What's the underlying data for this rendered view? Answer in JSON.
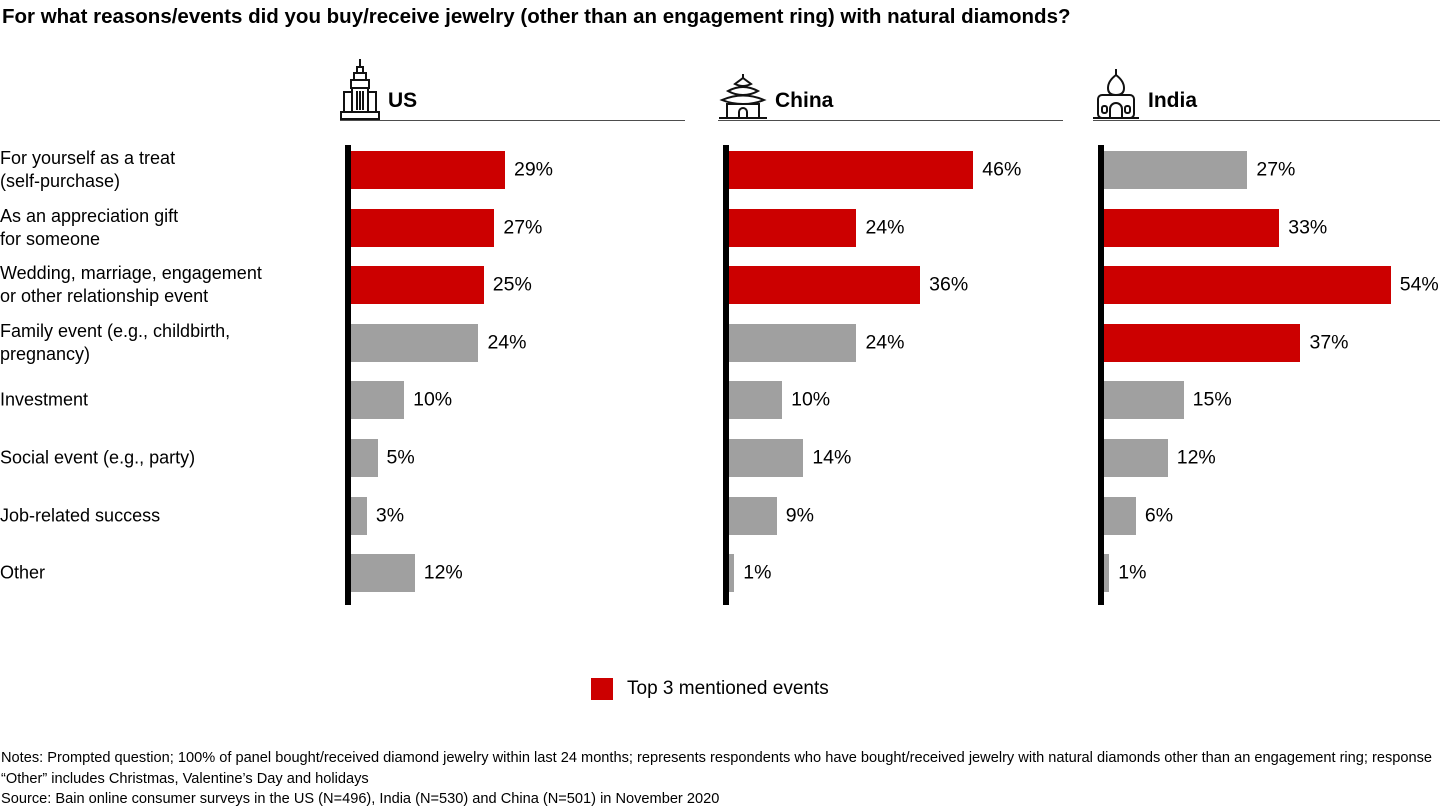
{
  "chart_data": {
    "type": "bar",
    "orientation": "horizontal",
    "title": "For what reasons/events did you buy/receive jewelry (other than an engagement ring) with natural diamonds?",
    "categories": [
      "For yourself as a treat\n(self-purchase)",
      "As an appreciation gift\nfor someone",
      "Wedding, marriage, engagement\nor other relationship event",
      "Family event (e.g., childbirth,\npregnancy)",
      "Investment",
      "Social event (e.g., party)",
      "Job-related success",
      "Other"
    ],
    "series": [
      {
        "name": "US",
        "icon": "empire-state-building-icon",
        "values": [
          29,
          27,
          25,
          24,
          10,
          5,
          3,
          12
        ],
        "highlighted": [
          true,
          true,
          true,
          false,
          false,
          false,
          false,
          false
        ]
      },
      {
        "name": "China",
        "icon": "china-temple-icon",
        "values": [
          46,
          24,
          36,
          24,
          10,
          14,
          9,
          1
        ],
        "highlighted": [
          true,
          true,
          true,
          false,
          false,
          false,
          false,
          false
        ]
      },
      {
        "name": "India",
        "icon": "taj-mahal-icon",
        "values": [
          27,
          33,
          54,
          37,
          15,
          12,
          6,
          1
        ],
        "highlighted": [
          false,
          true,
          true,
          true,
          false,
          false,
          false,
          false
        ]
      }
    ],
    "value_suffix": "%",
    "xlim": [
      0,
      64
    ],
    "grid": false,
    "legend": {
      "label": "Top 3 mentioned events",
      "position": "bottom-center",
      "color": "#CC0000"
    },
    "colors": {
      "highlight": "#CC0000",
      "base": "#A0A0A0",
      "axis": "#000000"
    }
  },
  "footnotes": {
    "notes": "Notes: Prompted question; 100% of panel bought/received diamond jewelry within last 24 months; represents respondents who have bought/received jewelry with natural diamonds other than an engagement ring; response “Other” includes Christmas, Valentine’s Day and holidays",
    "source": "Source: Bain online consumer surveys in the US (N=496), India (N=530) and China (N=501) in November 2020"
  }
}
